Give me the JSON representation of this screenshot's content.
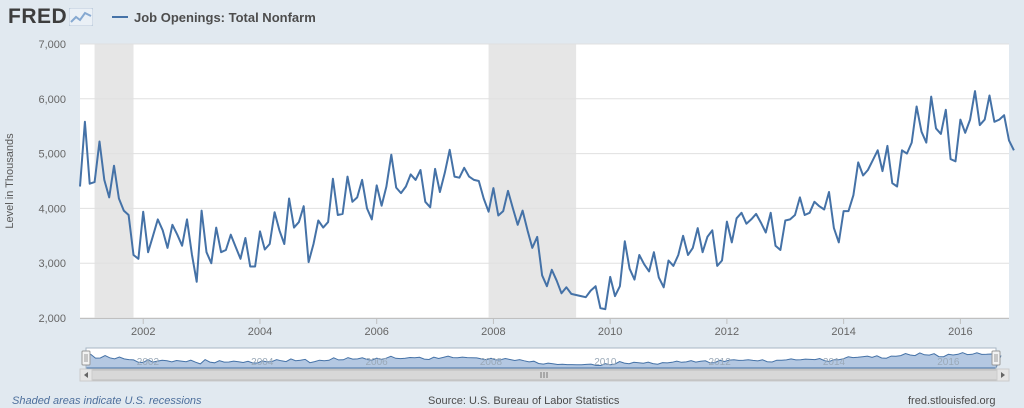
{
  "header": {
    "logo_text": "FRED",
    "series_label": "Job Openings: Total Nonfarm"
  },
  "footer": {
    "recession_note": "Shaded areas indicate U.S. recessions",
    "source": "Source: U.S. Bureau of Labor Statistics",
    "site": "fred.stlouisfed.org"
  },
  "colors": {
    "line": "#4572a7",
    "recession": "#e6e6e6",
    "plot_background": "#ffffff",
    "page_background": "#e1e9f0",
    "navigator_fill": "#9bb5d8"
  },
  "chart_data": {
    "type": "line",
    "ylabel": "Level in Thousands",
    "x_range": [
      "2000-12",
      "2016-11"
    ],
    "ylim": [
      2000,
      7000
    ],
    "y_ticks": [
      2000,
      3000,
      4000,
      5000,
      6000,
      7000
    ],
    "y_tick_labels": [
      "2,000",
      "3,000",
      "4,000",
      "5,000",
      "6,000",
      "7,000"
    ],
    "x_ticks": [
      "2002",
      "2004",
      "2006",
      "2008",
      "2010",
      "2012",
      "2014",
      "2016"
    ],
    "grid": true,
    "legend": "top-left",
    "recessions": [
      {
        "start": "2001-03",
        "end": "2001-11"
      },
      {
        "start": "2007-12",
        "end": "2009-06"
      }
    ],
    "navigator_ticks": [
      "2002",
      "2004",
      "2006",
      "2008",
      "2010",
      "2012",
      "2014",
      "2016"
    ],
    "series": [
      {
        "name": "Job Openings: Total Nonfarm",
        "start": "2000-12",
        "frequency": "monthly",
        "values": [
          4400,
          5580,
          4450,
          4480,
          5220,
          4520,
          4200,
          4780,
          4180,
          3960,
          3880,
          3150,
          3080,
          3940,
          3200,
          3500,
          3800,
          3600,
          3280,
          3700,
          3520,
          3320,
          3800,
          3160,
          2660,
          3960,
          3200,
          3000,
          3650,
          3200,
          3240,
          3520,
          3300,
          3080,
          3460,
          2940,
          2940,
          3580,
          3250,
          3350,
          3930,
          3600,
          3350,
          4180,
          3650,
          3750,
          4040,
          3020,
          3350,
          3780,
          3650,
          3750,
          4540,
          3880,
          3900,
          4580,
          4120,
          4200,
          4520,
          4000,
          3800,
          4420,
          4050,
          4400,
          4980,
          4380,
          4280,
          4400,
          4620,
          4520,
          4700,
          4120,
          4020,
          4720,
          4300,
          4650,
          5070,
          4580,
          4560,
          4740,
          4580,
          4520,
          4500,
          4180,
          3940,
          4370,
          3870,
          3950,
          4320,
          4000,
          3700,
          3960,
          3600,
          3280,
          3480,
          2780,
          2580,
          2880,
          2680,
          2450,
          2560,
          2440,
          2420,
          2400,
          2380,
          2500,
          2580,
          2180,
          2160,
          2750,
          2400,
          2580,
          3400,
          2900,
          2700,
          3150,
          2980,
          2850,
          3200,
          2740,
          2560,
          3050,
          2950,
          3150,
          3500,
          3150,
          3280,
          3640,
          3200,
          3480,
          3600,
          2950,
          3050,
          3760,
          3380,
          3820,
          3920,
          3720,
          3800,
          3900,
          3740,
          3560,
          3920,
          3320,
          3240,
          3780,
          3800,
          3880,
          4200,
          3880,
          3920,
          4120,
          4040,
          3980,
          4300,
          3640,
          3380,
          3950,
          3950,
          4240,
          4840,
          4600,
          4700,
          4880,
          5060,
          4680,
          5140,
          4460,
          4400,
          5060,
          5000,
          5200,
          5860,
          5400,
          5200,
          6040,
          5460,
          5360,
          5800,
          4900,
          4860,
          5620,
          5380,
          5620,
          6140,
          5520,
          5620,
          6060,
          5580,
          5620,
          5700,
          5240,
          5060
        ]
      }
    ]
  }
}
